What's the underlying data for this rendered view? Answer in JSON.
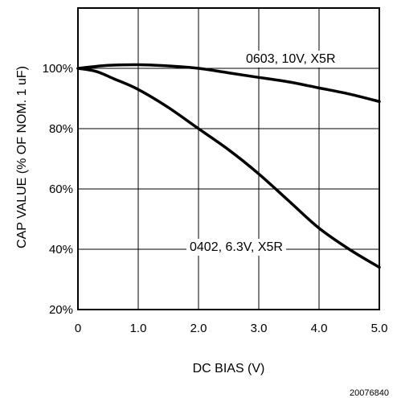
{
  "chart_data": {
    "type": "line",
    "title": "",
    "xlabel": "DC BIAS (V)",
    "ylabel": "CAP VALUE (% OF NOM. 1 uF)",
    "xlim": [
      0,
      5
    ],
    "ylim": [
      20,
      120
    ],
    "grid": true,
    "x_ticks": [
      0,
      1,
      2,
      3,
      4,
      5
    ],
    "x_tick_labels": [
      "0",
      "1.0",
      "2.0",
      "3.0",
      "4.0",
      "5.0"
    ],
    "y_ticks": [
      20,
      40,
      60,
      80,
      100
    ],
    "y_tick_labels": [
      "20%",
      "40%",
      "60%",
      "80%",
      "100%"
    ],
    "series": [
      {
        "name": "0603, 10V, X5R",
        "x": [
          0,
          0.5,
          1.0,
          1.5,
          2.0,
          2.5,
          3.0,
          3.5,
          4.0,
          4.5,
          5.0
        ],
        "y": [
          100,
          101,
          101.2,
          100.8,
          100,
          98.5,
          97,
          95.5,
          93.5,
          91.5,
          89
        ]
      },
      {
        "name": "0402, 6.3V, X5R",
        "x": [
          0,
          0.3,
          0.6,
          1.0,
          1.5,
          2.0,
          2.5,
          3.0,
          3.5,
          4.0,
          4.5,
          5.0
        ],
        "y": [
          100,
          99,
          96.5,
          93,
          87,
          80,
          73,
          65,
          56,
          47,
          40,
          34
        ]
      }
    ],
    "annotations": {
      "figure_id": "20076840"
    }
  }
}
